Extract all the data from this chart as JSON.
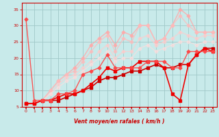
{
  "xlabel": "Vent moyen/en rafales ( km/h )",
  "bg_color": "#c8eaea",
  "grid_color": "#a0c8c8",
  "xlim": [
    -0.5,
    23.5
  ],
  "ylim": [
    5,
    37
  ],
  "yticks": [
    5,
    10,
    15,
    20,
    25,
    30,
    35
  ],
  "xticks": [
    0,
    1,
    2,
    3,
    4,
    5,
    6,
    7,
    8,
    9,
    10,
    11,
    12,
    13,
    14,
    15,
    16,
    17,
    18,
    19,
    20,
    21,
    22,
    23
  ],
  "series": [
    {
      "x": [
        0,
        1,
        2,
        3,
        4,
        5,
        6,
        7,
        8,
        9,
        10,
        11,
        12,
        13,
        14,
        15,
        16,
        17,
        18,
        19,
        20,
        21,
        22,
        23
      ],
      "y": [
        6,
        6,
        7,
        10,
        13,
        15,
        17,
        20,
        24,
        26,
        28,
        24,
        28,
        27,
        30,
        30,
        25,
        26,
        30,
        35,
        33,
        28,
        28,
        28
      ],
      "color": "#ffaaaa",
      "alpha": 0.85,
      "lw": 1.0,
      "marker": "D",
      "ms": 2.5
    },
    {
      "x": [
        0,
        1,
        2,
        3,
        4,
        5,
        6,
        7,
        8,
        9,
        10,
        11,
        12,
        13,
        14,
        15,
        16,
        17,
        18,
        19,
        20,
        21,
        22,
        23
      ],
      "y": [
        6,
        6,
        7,
        10,
        13,
        15,
        16,
        19,
        22,
        25,
        27,
        22,
        26,
        25,
        30,
        30,
        25,
        26,
        30,
        33,
        30,
        28,
        28,
        28
      ],
      "color": "#ffbbbb",
      "alpha": 0.75,
      "lw": 1.0,
      "marker": "D",
      "ms": 2.5
    },
    {
      "x": [
        0,
        1,
        2,
        3,
        4,
        5,
        6,
        7,
        8,
        9,
        10,
        11,
        12,
        13,
        14,
        15,
        16,
        17,
        18,
        19,
        20,
        21,
        22,
        23
      ],
      "y": [
        6,
        6,
        7,
        9,
        12,
        14,
        15,
        17,
        19,
        22,
        24,
        20,
        22,
        22,
        26,
        27,
        24,
        25,
        26,
        28,
        27,
        26,
        27,
        27
      ],
      "color": "#ffcccc",
      "alpha": 0.7,
      "lw": 1.0,
      "marker": "D",
      "ms": 2.5
    },
    {
      "x": [
        0,
        1,
        2,
        3,
        4,
        5,
        6,
        7,
        8,
        9,
        10,
        11,
        12,
        13,
        14,
        15,
        16,
        17,
        18,
        19,
        20,
        21,
        22,
        23
      ],
      "y": [
        6,
        6,
        7,
        9,
        11,
        13,
        14,
        16,
        18,
        20,
        22,
        19,
        20,
        20,
        23,
        24,
        22,
        23,
        24,
        25,
        25,
        24,
        25,
        25
      ],
      "color": "#ffdddd",
      "alpha": 0.65,
      "lw": 1.0,
      "marker": "D",
      "ms": 2.5
    },
    {
      "x": [
        0,
        1,
        2,
        3,
        4,
        5,
        6,
        7,
        8,
        9,
        10,
        11,
        12,
        13,
        14,
        15,
        16,
        17,
        18,
        19,
        20,
        21,
        22,
        23
      ],
      "y": [
        6,
        6,
        7,
        7,
        7,
        8,
        9,
        10,
        11,
        13,
        14,
        14,
        15,
        16,
        16,
        17,
        18,
        17,
        17,
        18,
        18,
        21,
        23,
        23
      ],
      "color": "#cc0000",
      "alpha": 1.0,
      "lw": 1.2,
      "marker": "s",
      "ms": 2.5
    },
    {
      "x": [
        0,
        1,
        2,
        3,
        4,
        5,
        6,
        7,
        8,
        9,
        10,
        11,
        12,
        13,
        14,
        15,
        16,
        17,
        18,
        19,
        20,
        21,
        22,
        23
      ],
      "y": [
        6,
        6,
        7,
        7,
        8,
        9,
        9,
        10,
        12,
        14,
        17,
        16,
        17,
        17,
        19,
        19,
        19,
        17,
        9,
        7,
        18,
        21,
        23,
        22
      ],
      "color": "#ee0000",
      "alpha": 1.0,
      "lw": 1.2,
      "marker": "s",
      "ms": 2.5
    },
    {
      "x": [
        0,
        1,
        2,
        3,
        4,
        5,
        6,
        7,
        8,
        9,
        10,
        11,
        12,
        13,
        14,
        15,
        16,
        17,
        18,
        19,
        20,
        21,
        22,
        23
      ],
      "y": [
        32,
        7,
        7,
        7,
        9,
        9,
        10,
        15,
        16,
        17,
        21,
        17,
        17,
        17,
        17,
        19,
        19,
        19,
        17,
        17,
        22,
        22,
        22,
        22
      ],
      "color": "#ff4444",
      "alpha": 0.9,
      "lw": 1.0,
      "marker": "D",
      "ms": 2.5
    }
  ],
  "arrow_color": "#cc0000"
}
